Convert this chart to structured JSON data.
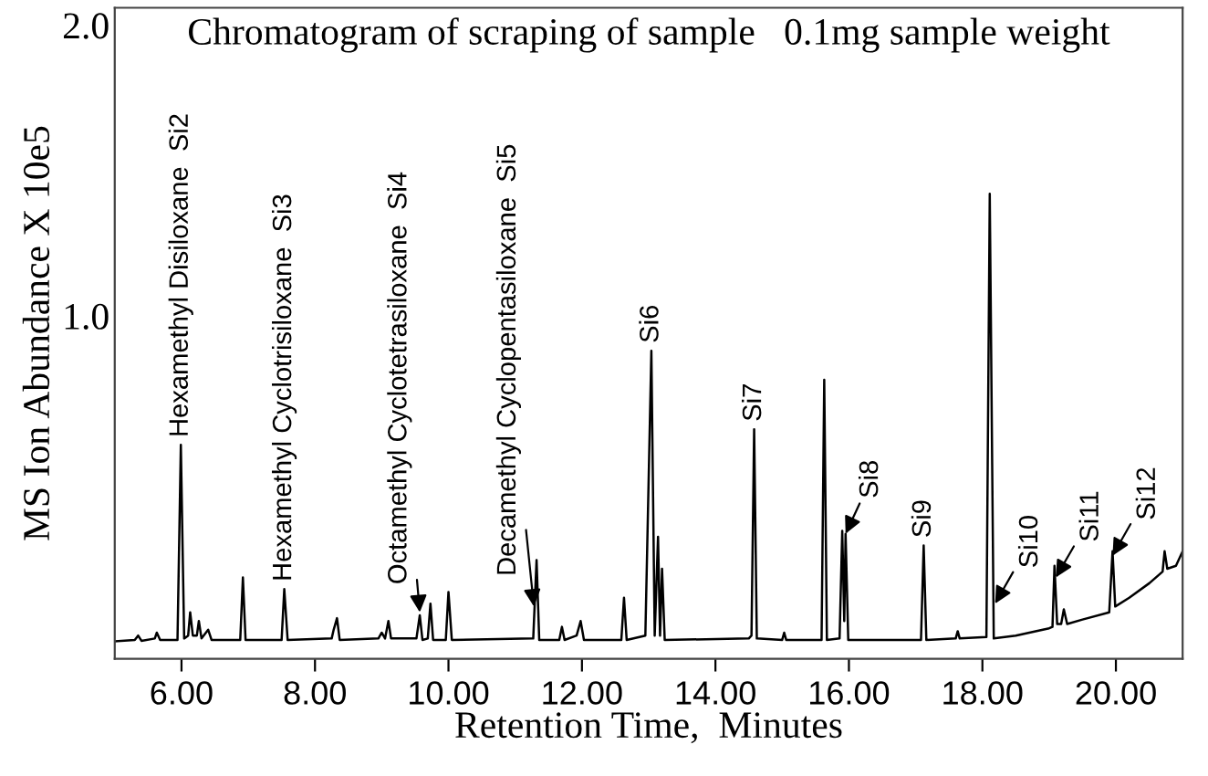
{
  "chart_data": {
    "type": "line",
    "title": "Chromatogram of scraping of sample   0.1mg sample weight",
    "xlabel": "Retention Time,  Minutes",
    "ylabel": "MS Ion Abundance X 10e5",
    "xlim": [
      5.0,
      21.0
    ],
    "ylim": [
      -0.18,
      2.06
    ],
    "xticks": [
      {
        "value": 6,
        "label": "6.00"
      },
      {
        "value": 8,
        "label": "8.00"
      },
      {
        "value": 10,
        "label": "10.00"
      },
      {
        "value": 12,
        "label": "12.00"
      },
      {
        "value": 14,
        "label": "14.00"
      },
      {
        "value": 16,
        "label": "16.00"
      },
      {
        "value": 18,
        "label": "18.00"
      },
      {
        "value": 20,
        "label": "20.00"
      }
    ],
    "yticks": [
      {
        "value": 1,
        "label": "1.0"
      },
      {
        "value": 2,
        "label": "2.0"
      }
    ],
    "grid": false,
    "legend": false,
    "marker": "none",
    "line_style": "solid",
    "series": [
      {
        "color": "#000000",
        "x": [
          5.0,
          5.3,
          5.35,
          5.4,
          5.6,
          5.63,
          5.68,
          5.94,
          5.99,
          6.04,
          6.1,
          6.13,
          6.17,
          6.23,
          6.26,
          6.3,
          6.4,
          6.45,
          6.88,
          6.92,
          6.96,
          7.5,
          7.54,
          7.59,
          8.25,
          8.28,
          8.33,
          8.37,
          8.95,
          9.0,
          9.05,
          9.1,
          9.14,
          9.52,
          9.57,
          9.61,
          9.69,
          9.73,
          9.77,
          9.96,
          10.0,
          10.05,
          11.27,
          11.32,
          11.36,
          11.66,
          11.7,
          11.74,
          11.92,
          11.98,
          12.03,
          12.59,
          12.63,
          12.67,
          12.95,
          13.04,
          13.09,
          13.14,
          13.17,
          13.2,
          13.24,
          14.5,
          14.54,
          14.58,
          14.62,
          15.0,
          15.03,
          15.06,
          15.59,
          15.63,
          15.67,
          15.86,
          15.9,
          15.93,
          15.95,
          15.99,
          17.08,
          17.12,
          17.16,
          17.6,
          17.63,
          17.66,
          18.06,
          18.11,
          18.17,
          18.5,
          19.0,
          19.05,
          19.08,
          19.12,
          19.18,
          19.22,
          19.27,
          19.5,
          19.9,
          19.95,
          19.99,
          20.2,
          20.5,
          20.7,
          20.73,
          20.77,
          20.9,
          21.0
        ],
        "values": [
          -0.12,
          -0.115,
          -0.1,
          -0.118,
          -0.11,
          -0.09,
          -0.115,
          -0.115,
          0.556,
          -0.11,
          -0.1,
          -0.02,
          -0.1,
          -0.1,
          -0.05,
          -0.11,
          -0.08,
          -0.115,
          -0.115,
          0.1,
          -0.115,
          -0.115,
          0.06,
          -0.115,
          -0.11,
          -0.08,
          -0.04,
          -0.115,
          -0.11,
          -0.09,
          -0.11,
          -0.05,
          -0.11,
          -0.11,
          -0.03,
          -0.115,
          -0.11,
          0.01,
          -0.115,
          -0.115,
          0.05,
          -0.115,
          -0.11,
          0.16,
          -0.115,
          -0.115,
          -0.07,
          -0.115,
          -0.1,
          -0.05,
          -0.115,
          -0.115,
          0.03,
          -0.115,
          -0.1,
          0.88,
          -0.1,
          0.24,
          -0.1,
          0.13,
          -0.115,
          -0.11,
          -0.1,
          0.61,
          -0.11,
          -0.115,
          -0.09,
          -0.115,
          -0.115,
          0.78,
          -0.115,
          -0.11,
          0.26,
          -0.05,
          0.25,
          -0.115,
          -0.115,
          0.21,
          -0.115,
          -0.11,
          -0.085,
          -0.11,
          -0.105,
          1.42,
          -0.11,
          -0.1,
          -0.075,
          -0.07,
          0.14,
          -0.06,
          -0.06,
          -0.01,
          -0.06,
          -0.045,
          -0.02,
          0.19,
          0.0,
          0.03,
          0.08,
          0.12,
          0.19,
          0.13,
          0.14,
          0.19
        ]
      }
    ],
    "annotations": [
      {
        "text": "Hexamethyl Disiloxane  Si2",
        "x": 5.99,
        "y": 0.556
      },
      {
        "text": "Hexamethyl Cyclotrisiloxane  Si3",
        "x": 7.54,
        "y": 0.06
      },
      {
        "text": "Octamethyl Cyclotetrasiloxane  Si4",
        "x": 9.57,
        "y": -0.02
      },
      {
        "text": "Decamethyl Cyclopentasiloxane  Si5",
        "x": 11.28,
        "y": 0.0
      },
      {
        "text": "Si6",
        "x": 13.04,
        "y": 0.88
      },
      {
        "text": "Si7",
        "x": 14.58,
        "y": 0.61
      },
      {
        "text": "Si8",
        "x": 15.95,
        "y": 0.25
      },
      {
        "text": "Si9",
        "x": 17.12,
        "y": 0.21
      },
      {
        "text": "Si10",
        "x": 18.19,
        "y": 0.01
      },
      {
        "text": "Si11",
        "x": 19.1,
        "y": 0.1
      },
      {
        "text": "Si12",
        "x": 19.95,
        "y": 0.175
      }
    ]
  }
}
